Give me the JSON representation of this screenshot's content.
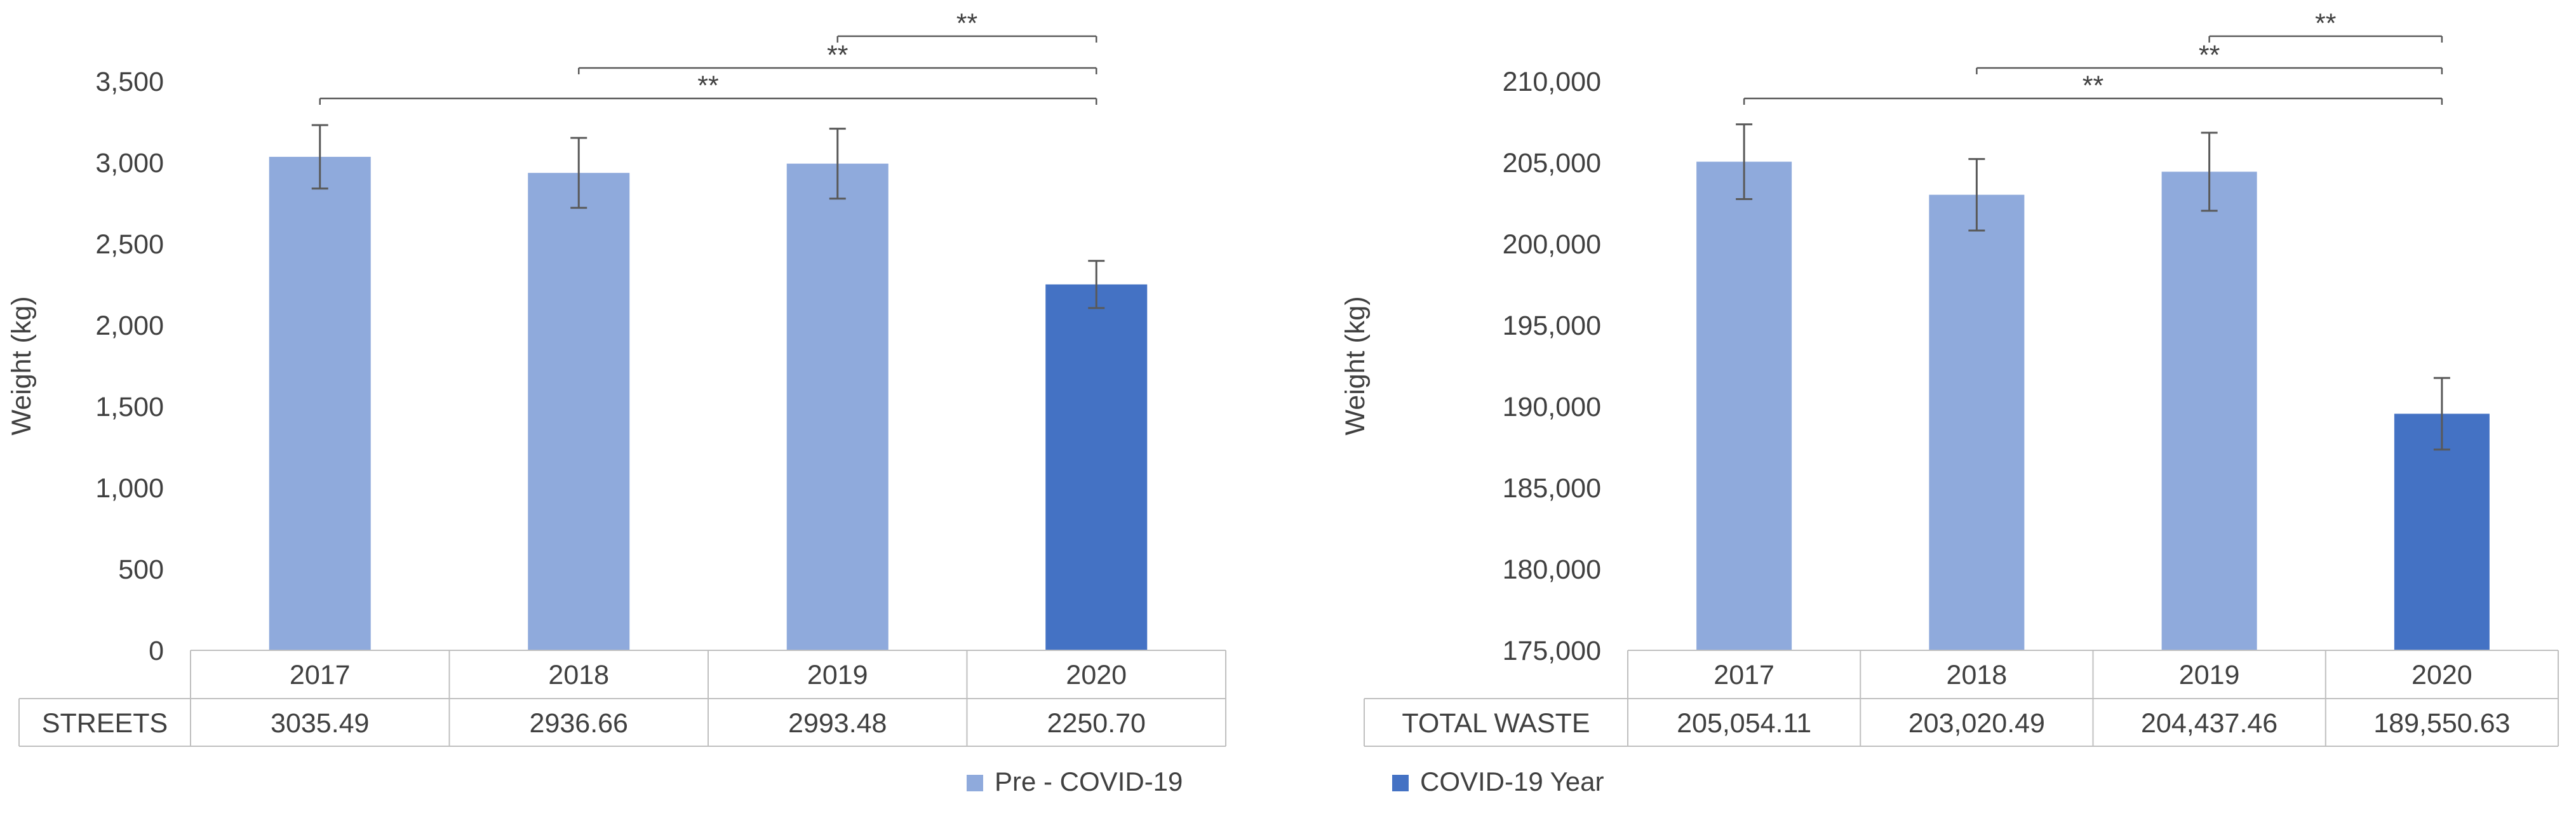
{
  "colors": {
    "pre": "#8faadc",
    "covid": "#4472c4",
    "axis": "#bfbfbf",
    "text": "#404040",
    "error": "#595959"
  },
  "legend": {
    "pre_label": "Pre - COVID-19",
    "covid_label": "COVID-19 Year"
  },
  "chart_data": [
    {
      "type": "bar",
      "title": "",
      "xlabel": "",
      "ylabel": "Weight (kg)",
      "ylim": [
        0,
        3500
      ],
      "yticks": [
        0,
        500,
        1000,
        1500,
        2000,
        2500,
        3000,
        3500
      ],
      "ytick_labels": [
        "0",
        "500",
        "1,000",
        "1,500",
        "2,000",
        "2,500",
        "3,000",
        "3,500"
      ],
      "categories": [
        "2017",
        "2018",
        "2019",
        "2020"
      ],
      "values": [
        3035.49,
        2936.66,
        2993.48,
        2250.7
      ],
      "errors": [
        195,
        215,
        215,
        145
      ],
      "bar_groups": [
        "pre",
        "pre",
        "pre",
        "covid"
      ],
      "table_row_label": "STREETS",
      "table_values": [
        "3035.49",
        "2936.66",
        "2993.48",
        "2250.70"
      ],
      "significance": [
        {
          "from": 0,
          "to": 3,
          "label": "**",
          "level": 0
        },
        {
          "from": 1,
          "to": 3,
          "label": "**",
          "level": 1
        },
        {
          "from": 2,
          "to": 3,
          "label": "**",
          "level": 2
        }
      ]
    },
    {
      "type": "bar",
      "title": "",
      "xlabel": "",
      "ylabel": "Weight (kg)",
      "ylim": [
        175000,
        210000
      ],
      "yticks": [
        175000,
        180000,
        185000,
        190000,
        195000,
        200000,
        205000,
        210000
      ],
      "ytick_labels": [
        "175,000",
        "180,000",
        "185,000",
        "190,000",
        "195,000",
        "200,000",
        "205,000",
        "210,000"
      ],
      "categories": [
        "2017",
        "2018",
        "2019",
        "2020"
      ],
      "values": [
        205054.11,
        203020.49,
        204437.46,
        189550.63
      ],
      "errors": [
        2300,
        2200,
        2400,
        2200
      ],
      "bar_groups": [
        "pre",
        "pre",
        "pre",
        "covid"
      ],
      "table_row_label": "TOTAL WASTE",
      "table_values": [
        "205,054.11",
        "203,020.49",
        "204,437.46",
        "189,550.63"
      ],
      "significance": [
        {
          "from": 0,
          "to": 3,
          "label": "**",
          "level": 0
        },
        {
          "from": 1,
          "to": 3,
          "label": "**",
          "level": 1
        },
        {
          "from": 2,
          "to": 3,
          "label": "**",
          "level": 2
        }
      ]
    }
  ]
}
